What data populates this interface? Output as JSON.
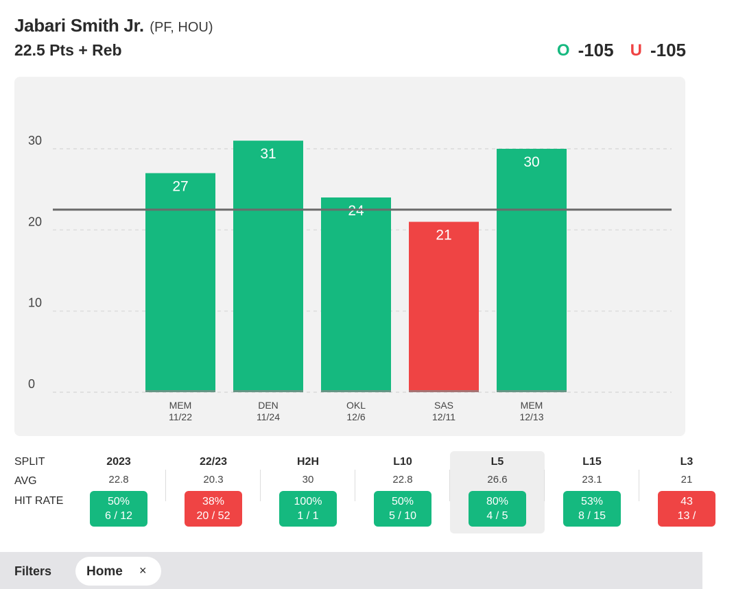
{
  "header": {
    "player_name": "Jabari Smith Jr.",
    "player_meta": "(PF, HOU)",
    "prop": "22.5 Pts + Reb",
    "over_tag": "O",
    "over_odds": "-105",
    "under_tag": "U",
    "under_odds": "-105"
  },
  "colors": {
    "hit": "#15b97f",
    "miss": "#ef4444",
    "card_bg": "#f2f2f2",
    "line": "#6b6b6b"
  },
  "chart_data": {
    "type": "bar",
    "title": "",
    "xlabel": "",
    "ylabel": "",
    "ylim": [
      0,
      30
    ],
    "yticks": [
      0,
      10,
      20,
      30
    ],
    "threshold": 22.5,
    "grid": true,
    "categories": [
      {
        "team": "MEM",
        "date": "11/22"
      },
      {
        "team": "DEN",
        "date": "11/24"
      },
      {
        "team": "OKL",
        "date": "12/6"
      },
      {
        "team": "SAS",
        "date": "12/11"
      },
      {
        "team": "MEM",
        "date": "12/13"
      }
    ],
    "values": [
      27,
      31,
      24,
      21,
      30
    ],
    "results": [
      "hit",
      "hit",
      "hit",
      "miss",
      "hit"
    ]
  },
  "splits": {
    "row_labels": {
      "split": "SPLIT",
      "avg": "AVG",
      "hit_rate": "HIT RATE"
    },
    "columns": [
      {
        "label": "2023",
        "avg": "22.8",
        "pct": "50%",
        "record": "6 / 12",
        "status": "hit",
        "selected": false
      },
      {
        "label": "22/23",
        "avg": "20.3",
        "pct": "38%",
        "record": "20 / 52",
        "status": "miss",
        "selected": false
      },
      {
        "label": "H2H",
        "avg": "30",
        "pct": "100%",
        "record": "1 / 1",
        "status": "hit",
        "selected": false
      },
      {
        "label": "L10",
        "avg": "22.8",
        "pct": "50%",
        "record": "5 / 10",
        "status": "hit",
        "selected": false
      },
      {
        "label": "L5",
        "avg": "26.6",
        "pct": "80%",
        "record": "4 / 5",
        "status": "hit",
        "selected": true
      },
      {
        "label": "L15",
        "avg": "23.1",
        "pct": "53%",
        "record": "8 / 15",
        "status": "hit",
        "selected": false
      },
      {
        "label": "L3",
        "avg": "21",
        "pct": "43",
        "record": "13 /",
        "status": "miss",
        "selected": false
      }
    ]
  },
  "filters": {
    "label": "Filters",
    "chips": [
      {
        "label": "Home",
        "close": "×"
      }
    ]
  }
}
